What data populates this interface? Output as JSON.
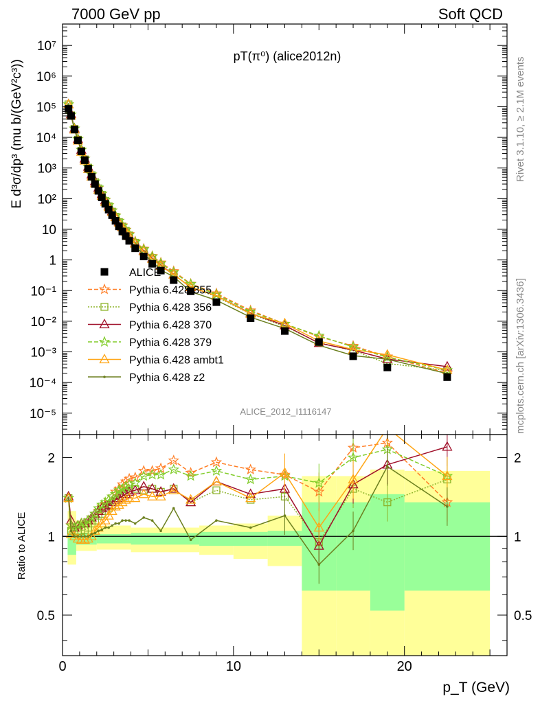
{
  "header": {
    "left": "7000 GeV pp",
    "right": "Soft QCD"
  },
  "side": {
    "rivet": "Rivet 3.1.10, ≥ 2.1M events",
    "mcplots": "mcplots.cern.ch [arXiv:1306.3436]"
  },
  "chart_data": {
    "type": "line",
    "title": "pT(π⁰) (alice2012n)",
    "analysis": "ALICE_2012_I1116147",
    "xlabel": "p_T (GeV)",
    "ylabel_top": "E d³σ/dp³ (mu b/(GeV²c³))",
    "ylabel_ratio": "Ratio to ALICE",
    "xlim": [
      0,
      26
    ],
    "ylim_top": [
      2e-06,
      50000000
    ],
    "ylim_ratio": [
      0.35,
      2.45
    ],
    "yscale_top": "log",
    "yscale_ratio": "log",
    "x_ticks": [
      0,
      10,
      20
    ],
    "top_tick_labels": [
      "10⁻⁵",
      "10⁻⁴",
      "10⁻³",
      "10⁻²",
      "10⁻¹",
      "1",
      "10",
      "10²",
      "10³",
      "10⁴",
      "10⁵",
      "10⁶",
      "10⁷"
    ],
    "ratio_ticks": [
      0.5,
      1,
      2
    ],
    "legend_position": "lower-left",
    "x": [
      0.35,
      0.5,
      0.7,
      0.9,
      1.1,
      1.3,
      1.5,
      1.7,
      1.9,
      2.1,
      2.3,
      2.5,
      2.7,
      2.9,
      3.1,
      3.3,
      3.5,
      3.7,
      3.9,
      4.25,
      4.75,
      5.25,
      5.75,
      6.5,
      7.5,
      9,
      11,
      13,
      15,
      17,
      19,
      22.5
    ],
    "data": {
      "name": "ALICE",
      "values": [
        85000,
        50000,
        18000,
        8000,
        3500,
        1800,
        950,
        520,
        300,
        180,
        110,
        68,
        44,
        29,
        19,
        12.5,
        8.5,
        6,
        4.2,
        2.4,
        1.3,
        0.75,
        0.45,
        0.22,
        0.095,
        0.042,
        0.0125,
        0.0048,
        0.0021,
        0.00072,
        0.00031,
        0.00015
      ]
    },
    "band_stat": [
      [
        0.3,
        0.8,
        1.05
      ],
      [
        0.8,
        2,
        1.03
      ],
      [
        2,
        4,
        1.02
      ],
      [
        4,
        8,
        1.03
      ],
      [
        8,
        12,
        1.04
      ],
      [
        12,
        14,
        1.05
      ],
      [
        14,
        16,
        1.35
      ],
      [
        16,
        18,
        1.35
      ],
      [
        18,
        20,
        1.45
      ],
      [
        20,
        25,
        1.35
      ]
    ],
    "band_stat_lo": [
      [
        0.3,
        0.8,
        0.85
      ],
      [
        0.8,
        2,
        0.93
      ],
      [
        2,
        4,
        0.94
      ],
      [
        4,
        8,
        0.93
      ],
      [
        8,
        12,
        0.92
      ],
      [
        12,
        14,
        0.92
      ],
      [
        14,
        16,
        0.62
      ],
      [
        16,
        18,
        0.62
      ],
      [
        18,
        20,
        0.52
      ],
      [
        20,
        25,
        0.62
      ]
    ],
    "band_tot": [
      [
        0.3,
        0.8,
        1.25
      ],
      [
        0.8,
        2,
        1.15
      ],
      [
        2,
        4,
        1.1
      ],
      [
        4,
        8,
        1.08
      ],
      [
        8,
        10,
        1.1
      ],
      [
        10,
        12,
        1.12
      ],
      [
        12,
        14,
        1.2
      ],
      [
        14,
        16,
        1.7
      ],
      [
        16,
        18,
        1.7
      ],
      [
        18,
        20,
        1.8
      ],
      [
        20,
        25,
        1.78
      ]
    ],
    "band_tot_lo": [
      [
        0.3,
        0.8,
        0.78
      ],
      [
        0.8,
        2,
        0.88
      ],
      [
        2,
        4,
        0.89
      ],
      [
        4,
        8,
        0.87
      ],
      [
        8,
        10,
        0.85
      ],
      [
        10,
        12,
        0.82
      ],
      [
        12,
        14,
        0.77
      ],
      [
        14,
        16,
        0.35
      ],
      [
        16,
        18,
        0.35
      ],
      [
        18,
        20,
        0.35
      ],
      [
        20,
        25,
        0.35
      ]
    ],
    "series": [
      {
        "name": "Pythia 6.428 355",
        "color": "#ff7f27",
        "dash": "6,3",
        "marker": "star",
        "ratio": [
          1.4,
          1.1,
          1.08,
          1.1,
          1.12,
          1.12,
          1.15,
          1.18,
          1.22,
          1.25,
          1.3,
          1.33,
          1.38,
          1.42,
          1.48,
          1.52,
          1.58,
          1.62,
          1.66,
          1.68,
          1.78,
          1.78,
          1.82,
          1.95,
          1.75,
          1.92,
          1.8,
          1.72,
          1.48,
          2.18,
          2.28,
          1.35
        ]
      },
      {
        "name": "Pythia 6.428 356",
        "color": "#8db32a",
        "dash": "2,2",
        "marker": "square",
        "ratio": [
          1.4,
          1.05,
          1.05,
          1.05,
          1.05,
          1.06,
          1.08,
          1.12,
          1.15,
          1.2,
          1.22,
          1.25,
          1.28,
          1.3,
          1.35,
          1.38,
          1.45,
          1.48,
          1.5,
          1.52,
          1.5,
          1.52,
          1.48,
          1.52,
          1.35,
          1.5,
          1.38,
          1.42,
          0.95,
          1.52,
          1.35,
          1.65
        ]
      },
      {
        "name": "Pythia 6.428 370",
        "color": "#a0102a",
        "dash": "",
        "marker": "triangle",
        "ratio": [
          1.42,
          1.15,
          1.08,
          1.1,
          1.12,
          1.12,
          1.15,
          1.18,
          1.22,
          1.25,
          1.28,
          1.3,
          1.32,
          1.35,
          1.38,
          1.4,
          1.42,
          1.45,
          1.48,
          1.5,
          1.55,
          1.52,
          1.48,
          1.52,
          1.35,
          1.62,
          1.45,
          1.52,
          0.92,
          1.58,
          1.88,
          2.2
        ]
      },
      {
        "name": "Pythia 6.428 379",
        "color": "#80cc28",
        "dash": "6,3",
        "marker": "star",
        "ratio": [
          1.4,
          1.1,
          1.08,
          1.1,
          1.12,
          1.12,
          1.15,
          1.18,
          1.22,
          1.28,
          1.32,
          1.35,
          1.38,
          1.42,
          1.45,
          1.5,
          1.52,
          1.55,
          1.58,
          1.6,
          1.7,
          1.72,
          1.72,
          1.8,
          1.7,
          1.78,
          1.65,
          1.7,
          1.6,
          2.0,
          2.15,
          1.7
        ]
      },
      {
        "name": "Pythia 6.428 ambt1",
        "color": "#ffa514",
        "dash": "",
        "marker": "triangle",
        "ratio": [
          1.4,
          1.02,
          1.0,
          0.98,
          0.97,
          0.97,
          0.98,
          1.0,
          1.05,
          1.08,
          1.12,
          1.15,
          1.2,
          1.25,
          1.3,
          1.32,
          1.35,
          1.38,
          1.4,
          1.4,
          1.45,
          1.42,
          1.42,
          1.5,
          1.38,
          1.62,
          1.4,
          1.75,
          1.08,
          1.65,
          2.6,
          1.7
        ]
      },
      {
        "name": "Pythia 6.428 z2",
        "color": "#6b7f1e",
        "dash": "",
        "marker": "dot",
        "ratio": [
          1.4,
          1.05,
          1.0,
          1.0,
          1.0,
          1.0,
          1.0,
          1.02,
          1.03,
          1.05,
          1.06,
          1.08,
          1.08,
          1.1,
          1.12,
          1.12,
          1.15,
          1.15,
          1.15,
          1.12,
          1.18,
          1.15,
          1.05,
          1.28,
          0.97,
          1.15,
          1.08,
          1.2,
          0.78,
          1.05,
          1.85,
          1.3
        ]
      }
    ]
  }
}
